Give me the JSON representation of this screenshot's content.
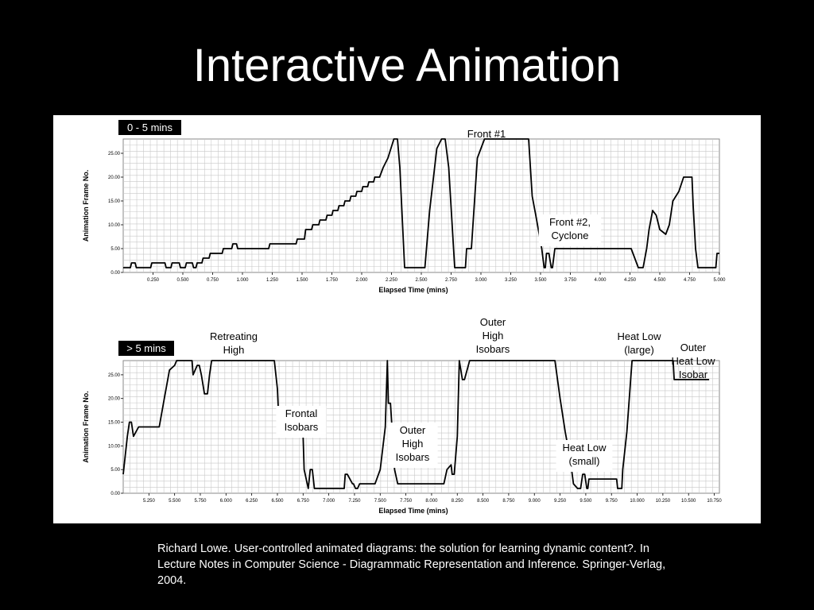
{
  "slide": {
    "title": "Interactive Animation",
    "citation": "Richard Lowe. User-controlled animated diagrams: the solution for learning dynamic content?. In Lecture Notes in Computer Science - Diagrammatic Representation and Inference. Springer-Verlag, 2004."
  },
  "chart_data": [
    {
      "type": "line",
      "panel_label": "0 - 5 mins",
      "xlabel": "Elapsed Time (mins)",
      "ylabel": "Animation Frame No.",
      "xlim": [
        0.0,
        5.0
      ],
      "ylim": [
        0,
        28
      ],
      "x_ticks": [
        "0.250",
        "0.500",
        "0.750",
        "1.000",
        "1.250",
        "1.500",
        "1.750",
        "2.000",
        "2.250",
        "2.500",
        "2.750",
        "3.000",
        "3.250",
        "3.500",
        "3.750",
        "4.000",
        "4.250",
        "4.500",
        "4.750",
        "5.000"
      ],
      "y_ticks": [
        "0.00",
        "5.00",
        "10.00",
        "15.00",
        "20.00",
        "25.00"
      ],
      "grid": true,
      "series": [
        {
          "x": [
            0.0,
            0.06,
            0.07,
            0.1,
            0.11,
            0.23,
            0.24,
            0.35,
            0.36,
            0.4,
            0.41,
            0.47,
            0.48,
            0.52,
            0.53,
            0.58,
            0.59,
            0.61,
            0.62,
            0.66,
            0.67,
            0.72,
            0.73,
            0.83,
            0.84,
            0.91,
            0.92,
            0.95,
            0.96,
            1.22,
            1.23,
            1.45,
            1.46,
            1.52,
            1.53,
            1.58,
            1.59,
            1.64,
            1.65,
            1.7,
            1.71,
            1.75,
            1.76,
            1.8,
            1.81,
            1.85,
            1.86,
            1.9,
            1.91,
            1.95,
            1.96,
            2.0,
            2.01,
            2.05,
            2.06,
            2.1,
            2.11,
            2.15,
            2.18,
            2.22,
            2.27,
            2.3,
            2.32,
            2.36,
            2.39,
            2.4,
            2.53,
            2.57,
            2.63,
            2.67,
            2.7,
            2.73,
            2.78,
            2.8,
            2.87,
            2.88,
            2.91,
            2.92,
            2.97,
            3.03,
            3.06,
            3.1,
            3.4,
            3.43,
            3.46,
            3.51,
            3.53,
            3.54,
            3.55,
            3.57,
            3.59,
            3.6,
            3.62,
            4.25,
            4.26,
            4.32,
            4.33,
            4.36,
            4.39,
            4.41,
            4.44,
            4.47,
            4.5,
            4.55,
            4.58,
            4.61,
            4.66,
            4.7,
            4.72,
            4.77,
            4.78,
            4.8,
            4.82,
            4.83,
            4.97,
            4.98,
            5.0
          ],
          "y": [
            1,
            1,
            2,
            2,
            1,
            1,
            2,
            2,
            1,
            1,
            2,
            2,
            1,
            1,
            2,
            2,
            1,
            1,
            2,
            2,
            3,
            3,
            4,
            4,
            5,
            5,
            6,
            6,
            5,
            5,
            6,
            6,
            7,
            7,
            9,
            9,
            10,
            10,
            11,
            11,
            12,
            12,
            13,
            13,
            14,
            14,
            15,
            15,
            16,
            16,
            17,
            17,
            18,
            18,
            19,
            19,
            20,
            20,
            22,
            24,
            28,
            28,
            22,
            1,
            1,
            1,
            1,
            13,
            26,
            28,
            28,
            22,
            1,
            1,
            1,
            5,
            5,
            5,
            24,
            28,
            28,
            28,
            28,
            16,
            12,
            5,
            1,
            1,
            4,
            4,
            1,
            1,
            5,
            5,
            5,
            1,
            1,
            1,
            5,
            9,
            13,
            12,
            9,
            8,
            10,
            15,
            17,
            20,
            20,
            20,
            14,
            5,
            1,
            1,
            1,
            4,
            4
          ]
        }
      ],
      "annotations": [
        "Front #1",
        "Front #2, Cyclone"
      ]
    },
    {
      "type": "line",
      "panel_label": "> 5 mins",
      "xlabel": "Elapsed Time (mins)",
      "ylabel": "Animation Frame No.",
      "xlim": [
        5.0,
        10.8
      ],
      "ylim": [
        0,
        28
      ],
      "x_ticks": [
        "5.250",
        "5.500",
        "5.750",
        "6.000",
        "6.250",
        "6.500",
        "6.750",
        "7.000",
        "7.250",
        "7.500",
        "7.750",
        "8.000",
        "8.250",
        "8.500",
        "8.750",
        "9.000",
        "9.250",
        "9.500",
        "9.750",
        "10.000",
        "10.250",
        "10.500",
        "10.750"
      ],
      "y_ticks": [
        "0.00",
        "5.00",
        "10.00",
        "15.00",
        "20.00",
        "25.00"
      ],
      "grid": true,
      "series": [
        {
          "x": [
            5.0,
            5.04,
            5.06,
            5.08,
            5.1,
            5.15,
            5.2,
            5.35,
            5.4,
            5.45,
            5.5,
            5.52,
            5.67,
            5.68,
            5.72,
            5.74,
            5.76,
            5.79,
            5.82,
            5.84,
            5.86,
            5.89,
            6.47,
            6.5,
            6.52,
            6.75,
            6.76,
            6.8,
            6.82,
            6.84,
            6.86,
            6.88,
            6.9,
            7.15,
            7.16,
            7.18,
            7.23,
            7.24,
            7.26,
            7.28,
            7.3,
            7.32,
            7.45,
            7.5,
            7.55,
            7.57,
            7.58,
            7.6,
            7.64,
            7.67,
            7.68,
            7.7,
            8.12,
            8.15,
            8.19,
            8.2,
            8.22,
            8.25,
            8.27,
            8.3,
            8.32,
            8.37,
            8.38,
            8.4,
            8.42,
            9.2,
            9.25,
            9.3,
            9.35,
            9.38,
            9.42,
            9.45,
            9.47,
            9.49,
            9.51,
            9.52,
            9.53,
            9.55,
            9.8,
            9.81,
            9.85,
            9.86,
            9.9,
            9.95,
            10.0,
            10.35,
            10.36,
            10.38,
            10.4,
            10.7
          ],
          "y": [
            4,
            12,
            15,
            15,
            12,
            14,
            14,
            14,
            20,
            26,
            27,
            28,
            28,
            25,
            27,
            27,
            25,
            21,
            21,
            25,
            28,
            28,
            28,
            22,
            12,
            12,
            5,
            1,
            5,
            5,
            1,
            1,
            1,
            1,
            4,
            4,
            2,
            2,
            1,
            1,
            2,
            2,
            2,
            5,
            14,
            28,
            19,
            19,
            5,
            2,
            2,
            2,
            2,
            5,
            6,
            4,
            4,
            12,
            28,
            24,
            24,
            28,
            28,
            28,
            28,
            28,
            20,
            13,
            7,
            2,
            1,
            1,
            4,
            4,
            1,
            1,
            3,
            3,
            3,
            1,
            1,
            5,
            13,
            28,
            28,
            28,
            24,
            24,
            24,
            24
          ]
        }
      ],
      "annotations": [
        "Retreating High",
        "Frontal Isobars",
        "Outer High Isobars",
        "Outer High Isobars",
        "Heat Low (small)",
        "Heat Low (large)",
        "Outer Heat Low Isobar"
      ]
    }
  ]
}
